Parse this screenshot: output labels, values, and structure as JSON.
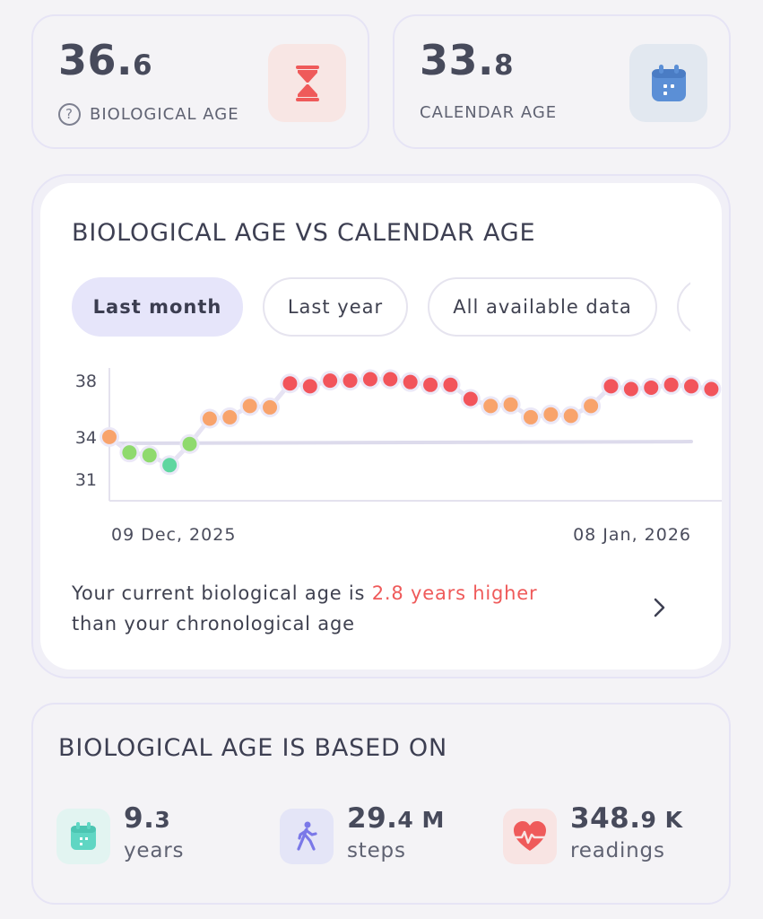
{
  "stats": {
    "biological": {
      "int": "36.",
      "dec": "6",
      "label": "BIOLOGICAL AGE",
      "help": "?"
    },
    "calendar": {
      "int": "33.",
      "dec": "8",
      "label": "CALENDAR AGE"
    }
  },
  "chart_card": {
    "title": "BIOLOGICAL AGE VS CALENDAR AGE",
    "tabs": [
      {
        "label": "Last month",
        "active": true
      },
      {
        "label": "Last year",
        "active": false
      },
      {
        "label": "All available data",
        "active": false
      }
    ],
    "summary_prefix": "Your current biological age is ",
    "summary_highlight": "2.8 years higher",
    "summary_suffix": "than your chronological age"
  },
  "chart_data": {
    "type": "scatter",
    "x_start_label": "09 Dec, 2025",
    "x_end_label": "08 Jan, 2026",
    "y_ticks": [
      38,
      34,
      31
    ],
    "biological_age": [
      34.0,
      32.9,
      32.7,
      32.0,
      33.5,
      35.3,
      35.4,
      36.2,
      36.1,
      37.8,
      37.6,
      38.0,
      38.0,
      38.1,
      38.1,
      37.9,
      37.7,
      37.7,
      36.7,
      36.2,
      36.3,
      35.4,
      35.6,
      35.5,
      36.2,
      37.6,
      37.4,
      37.5,
      37.7,
      37.6,
      37.4
    ],
    "calendar_age": [
      33.8,
      33.8
    ],
    "colors": {
      "green": "#8fda6e",
      "teal": "#5fd6a0",
      "orange": "#f8a36c",
      "red": "#f2545b",
      "calendar_line": "#dddbec"
    }
  },
  "based_on": {
    "title": "BIOLOGICAL AGE IS BASED ON",
    "metrics": [
      {
        "int": "9.",
        "dec": "3",
        "suffix": "",
        "unit": "years",
        "icon": "calendar-icon"
      },
      {
        "int": "29.",
        "dec": "4",
        "suffix": " M",
        "unit": "steps",
        "icon": "walking-icon"
      },
      {
        "int": "348.",
        "dec": "9",
        "suffix": " K",
        "unit": "readings",
        "icon": "heart-pulse-icon"
      }
    ]
  },
  "colors": {
    "accent_red": "#ef5a5a",
    "accent_blue": "#5b8fd6",
    "accent_purple": "#7a78e8",
    "accent_teal": "#5fd6c3"
  }
}
